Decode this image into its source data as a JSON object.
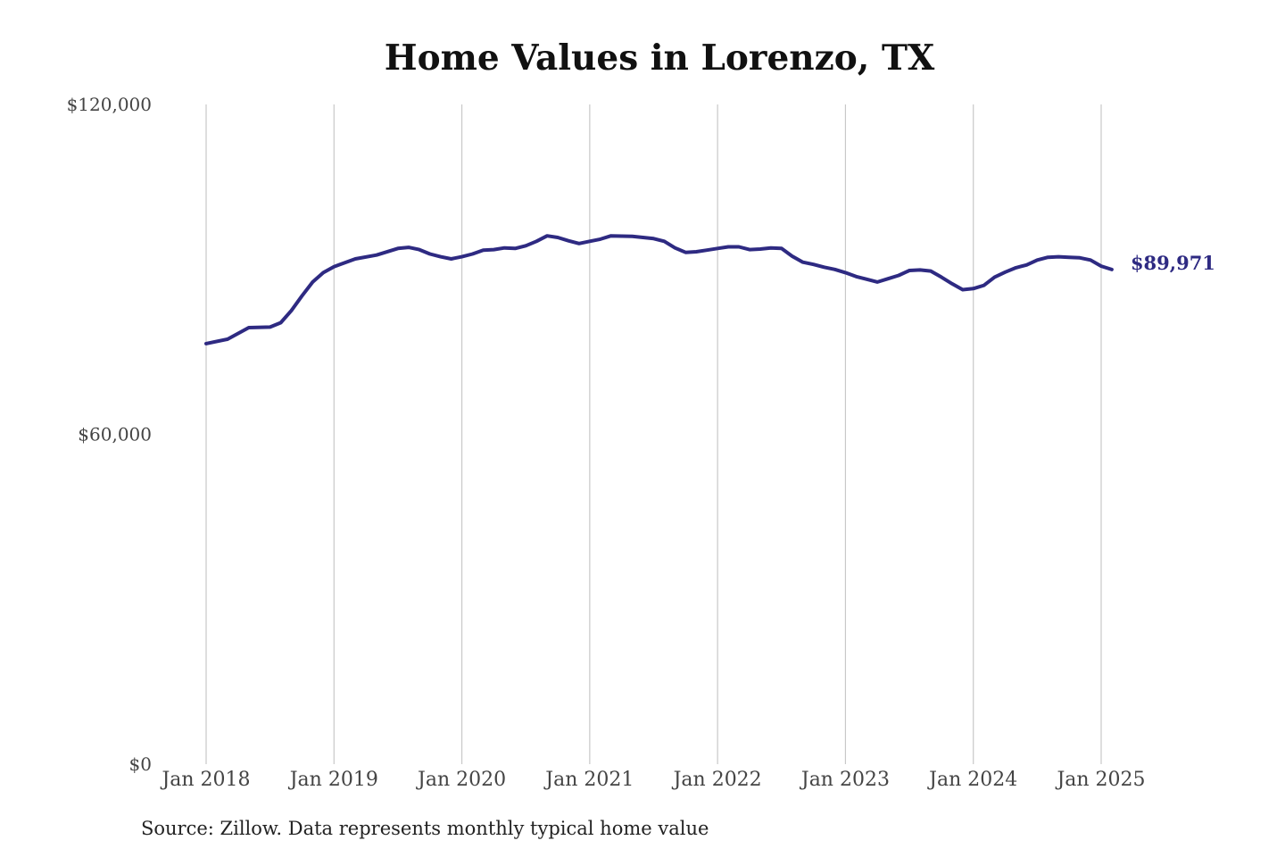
{
  "page": {
    "source_note": "Source: Zillow. Data represents monthly typical home value"
  },
  "chart_data": {
    "type": "line",
    "title": "Home Values in Lorenzo, TX",
    "xlabel": "",
    "ylabel": "",
    "ylim": [
      0,
      120000
    ],
    "yticks": [
      0,
      60000,
      120000
    ],
    "ytick_labels": [
      "$0",
      "$60,000",
      "$120,000"
    ],
    "xlim": [
      "2018-01",
      "2025-02"
    ],
    "xticks": [
      "2018-01",
      "2019-01",
      "2020-01",
      "2021-01",
      "2022-01",
      "2023-01",
      "2024-01",
      "2025-01"
    ],
    "xtick_labels": [
      "Jan 2018",
      "Jan 2019",
      "Jan 2020",
      "Jan 2021",
      "Jan 2022",
      "Jan 2023",
      "Jan 2024",
      "Jan 2025"
    ],
    "grid": {
      "vertical": true,
      "horizontal": false
    },
    "line_color": "#2e2a82",
    "end_label": "$89,971",
    "x": [
      "2018-01",
      "2018-03",
      "2018-05",
      "2018-07",
      "2018-08",
      "2018-09",
      "2018-10",
      "2018-11",
      "2018-12",
      "2019-01",
      "2019-03",
      "2019-05",
      "2019-07",
      "2019-08",
      "2019-09",
      "2019-10",
      "2019-11",
      "2019-12",
      "2020-01",
      "2020-02",
      "2020-03",
      "2020-04",
      "2020-05",
      "2020-06",
      "2020-07",
      "2020-08",
      "2020-09",
      "2020-10",
      "2020-11",
      "2020-12",
      "2021-01",
      "2021-02",
      "2021-03",
      "2021-05",
      "2021-07",
      "2021-08",
      "2021-09",
      "2021-10",
      "2021-11",
      "2021-12",
      "2022-01",
      "2022-02",
      "2022-03",
      "2022-04",
      "2022-05",
      "2022-06",
      "2022-07",
      "2022-08",
      "2022-09",
      "2022-10",
      "2022-11",
      "2022-12",
      "2023-01",
      "2023-02",
      "2023-03",
      "2023-04",
      "2023-05",
      "2023-06",
      "2023-07",
      "2023-08",
      "2023-09",
      "2023-10",
      "2023-11",
      "2023-12",
      "2024-01",
      "2024-02",
      "2024-03",
      "2024-04",
      "2024-05",
      "2024-06",
      "2024-07",
      "2024-08",
      "2024-09",
      "2024-10",
      "2024-11",
      "2024-12",
      "2025-01",
      "2025-02"
    ],
    "series": [
      {
        "values": [
          76500,
          77300,
          79400,
          79500,
          80300,
          82500,
          85200,
          87700,
          89400,
          90500,
          91900,
          92600,
          93800,
          94000,
          93600,
          92800,
          92300,
          91900,
          92300,
          92800,
          93500,
          93600,
          93900,
          93800,
          94300,
          95100,
          96100,
          95800,
          95200,
          94700,
          95100,
          95500,
          96100,
          96000,
          95600,
          95100,
          93900,
          93100,
          93200,
          93500,
          93800,
          94100,
          94100,
          93600,
          93700,
          93900,
          93800,
          92400,
          91300,
          90900,
          90400,
          90000,
          89400,
          88700,
          88200,
          87700,
          88300,
          88900,
          89800,
          89900,
          89700,
          88600,
          87400,
          86300,
          86500,
          87100,
          88600,
          89500,
          90300,
          90800,
          91700,
          92200,
          92300,
          92200,
          92100,
          91700,
          90600,
          89971
        ]
      }
    ]
  }
}
